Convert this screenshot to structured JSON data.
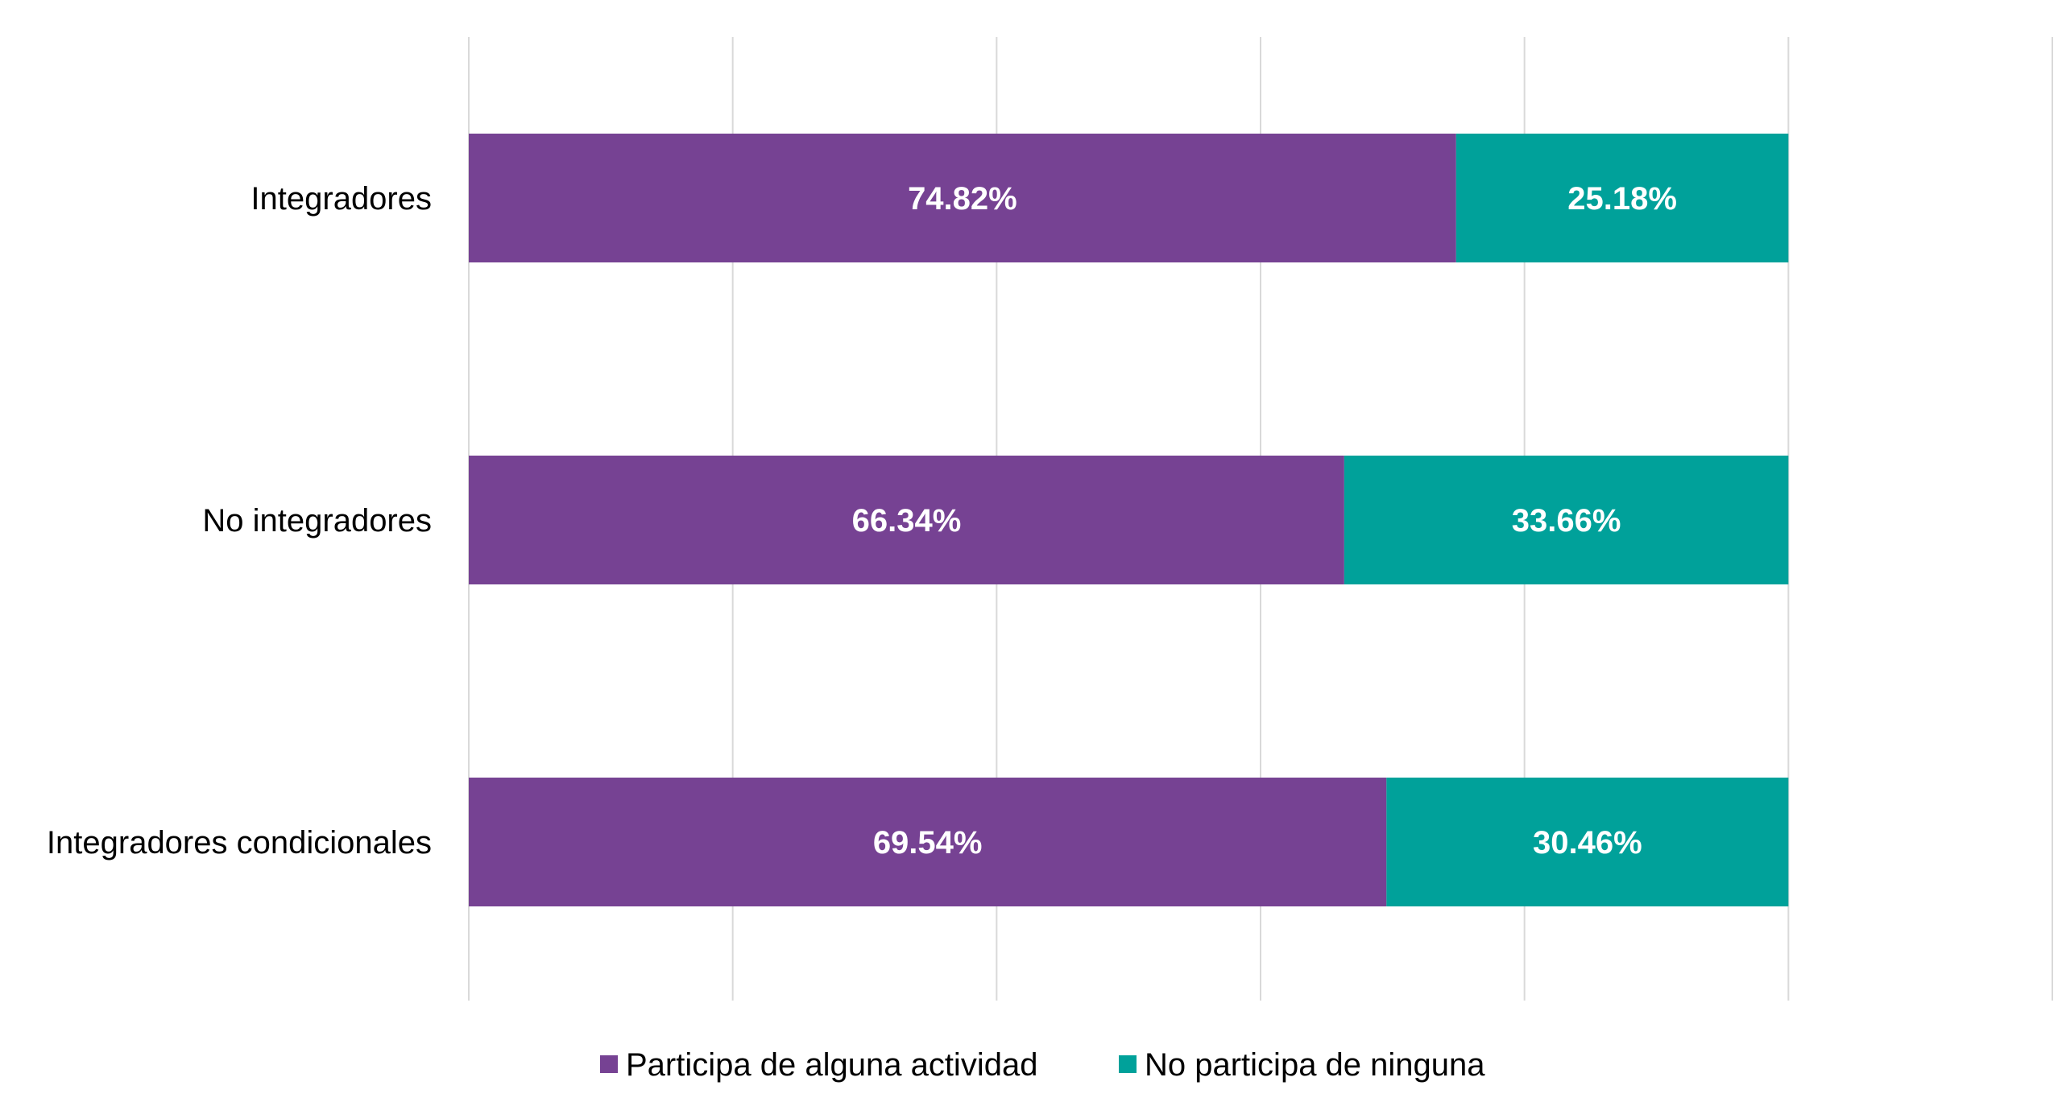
{
  "chart_data": {
    "type": "bar",
    "orientation": "horizontal",
    "stacked": true,
    "categories": [
      "Integradores",
      "No integradores",
      "Integradores condicionales"
    ],
    "series": [
      {
        "name": "Participa de alguna actividad",
        "values": [
          74.82,
          66.34,
          69.54
        ],
        "labels": [
          "74.82%",
          "66.34%",
          "69.54%"
        ],
        "color": "#764293"
      },
      {
        "name": "No participa de ninguna",
        "values": [
          25.18,
          33.66,
          30.46
        ],
        "labels": [
          "25.18%",
          "33.66%",
          "30.46%"
        ],
        "color": "#00A19A"
      }
    ],
    "xlim": [
      0,
      120
    ],
    "x_gridlines": [
      0,
      20,
      40,
      60,
      80,
      100,
      120
    ],
    "grid": true,
    "legend_position": "bottom"
  }
}
